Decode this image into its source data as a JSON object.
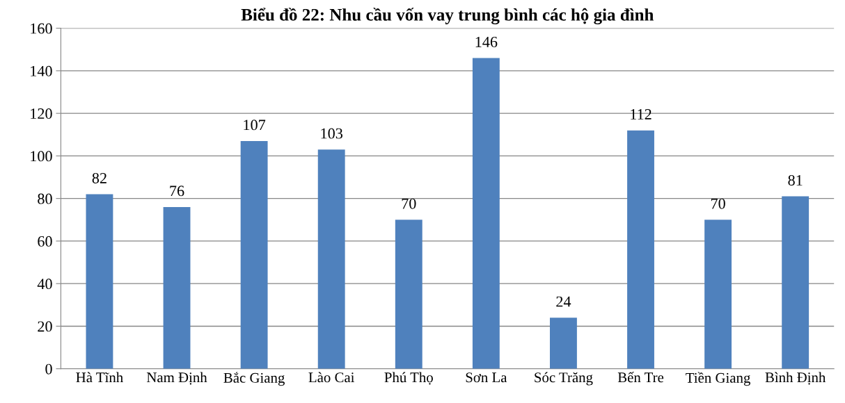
{
  "chart_data": {
    "type": "bar",
    "title": "Biểu đồ 22: Nhu cầu vốn vay trung bình các hộ gia đình",
    "categories": [
      "Hà Tĩnh",
      "Nam Định",
      "Bắc Giang",
      "Lào Cai",
      "Phú Thọ",
      "Sơn La",
      "Sóc Trăng",
      "Bến Tre",
      "Tiền Giang",
      "Bình Định"
    ],
    "values": [
      82,
      76,
      107,
      103,
      70,
      146,
      24,
      112,
      70,
      81
    ],
    "color": "#4f81bd",
    "ylim": [
      0,
      160
    ],
    "yticks": [
      0,
      20,
      40,
      60,
      80,
      100,
      120,
      140,
      160
    ],
    "grid": "y",
    "data_labels": true
  }
}
